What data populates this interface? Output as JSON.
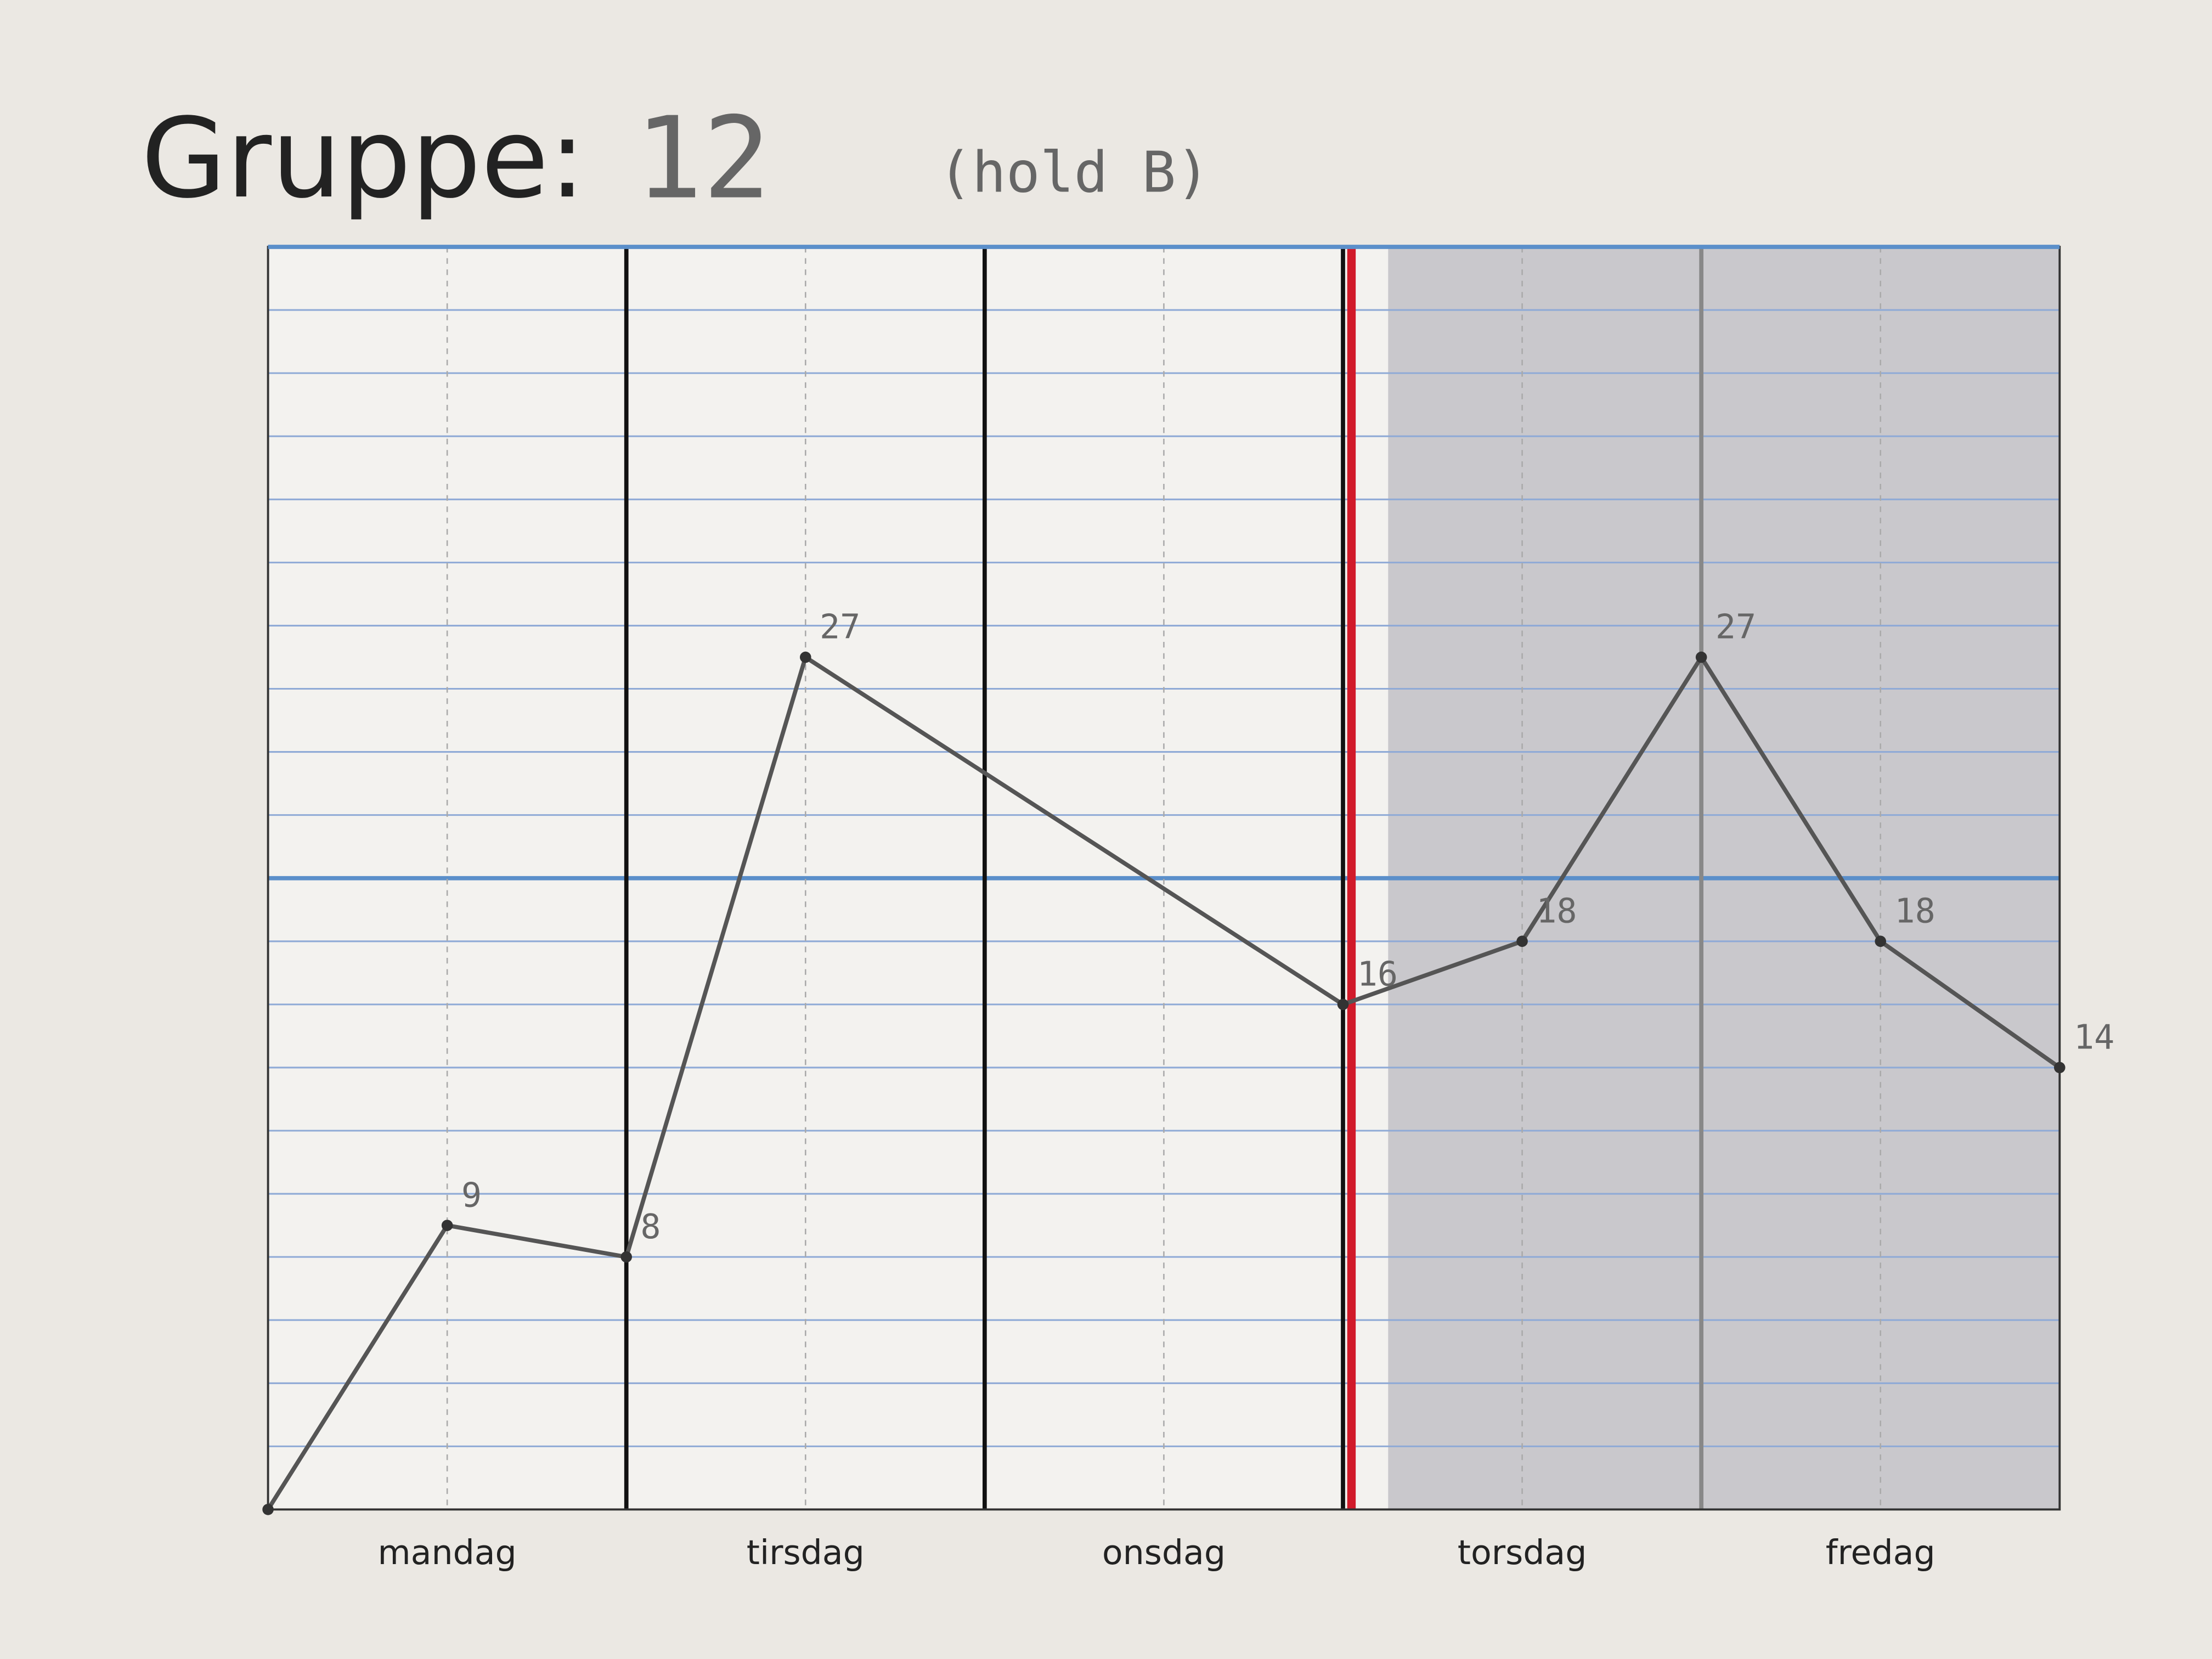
{
  "chart_data": {
    "type": "line",
    "title": "Gruppe:",
    "group": "12",
    "note": "(hold B)",
    "categories": [
      "mandag",
      "tirsdag",
      "onsdag",
      "torsdag",
      "fredag"
    ],
    "x": [
      0,
      0.5,
      1,
      1.5,
      3,
      3.5,
      4,
      4.5,
      5
    ],
    "values": [
      0,
      9,
      8,
      27,
      16,
      18,
      27,
      18,
      14
    ],
    "value_labels": [
      null,
      "9",
      "8",
      "27",
      "16",
      "18",
      "27",
      "18",
      "14"
    ],
    "color": "#555555",
    "xlim": [
      0,
      5
    ],
    "ylim": [
      0,
      40
    ],
    "yticks": [
      0,
      2,
      4,
      6,
      8,
      10,
      12,
      14,
      16,
      18,
      20,
      22,
      24,
      26,
      28,
      30,
      32,
      34,
      36,
      38,
      40
    ],
    "highlight_y": 20,
    "marker_x": 3,
    "shaded_from": 3,
    "grid": true
  }
}
